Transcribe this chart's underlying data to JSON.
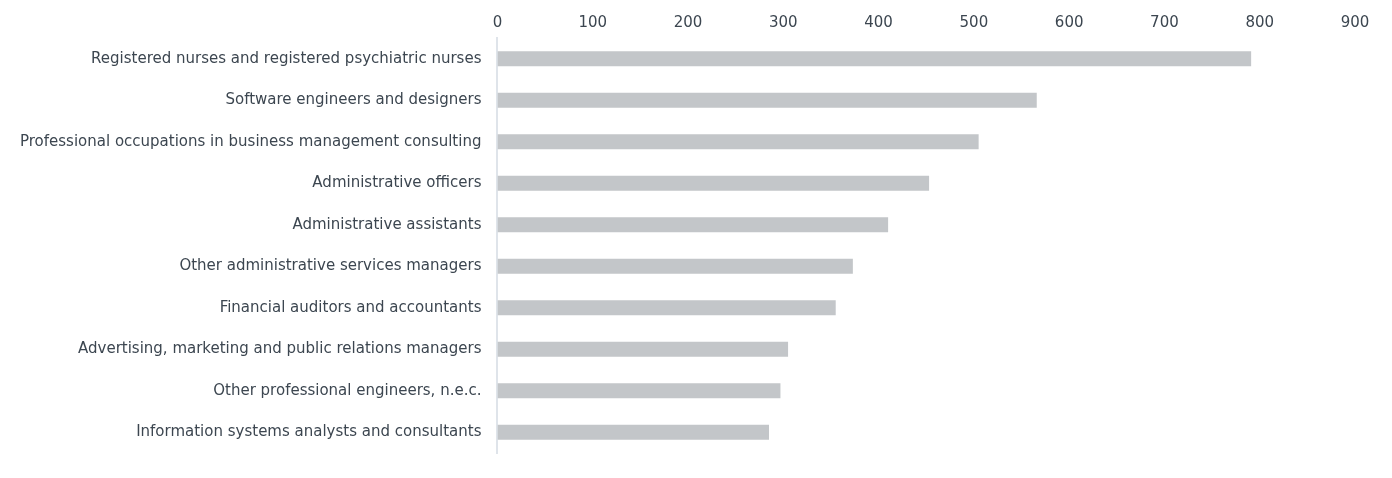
{
  "chart_data": {
    "type": "bar",
    "orientation": "horizontal",
    "categories": [
      "Registered nurses and registered psychiatric nurses",
      "Software engineers and designers",
      "Professional occupations in business management consulting",
      "Administrative officers",
      "Administrative assistants",
      "Other administrative services managers",
      "Financial auditors and accountants",
      "Advertising, marketing and public relations managers",
      "Other professional engineers, n.e.c.",
      "Information systems analysts and consultants"
    ],
    "values": [
      791,
      566,
      505,
      453,
      410,
      373,
      355,
      305,
      297,
      285
    ],
    "color": "#c3c6c9",
    "xlim": [
      0,
      900
    ],
    "xticks": [
      0,
      100,
      200,
      300,
      400,
      500,
      600,
      700,
      800,
      900
    ],
    "grid": false,
    "legend": false
  }
}
